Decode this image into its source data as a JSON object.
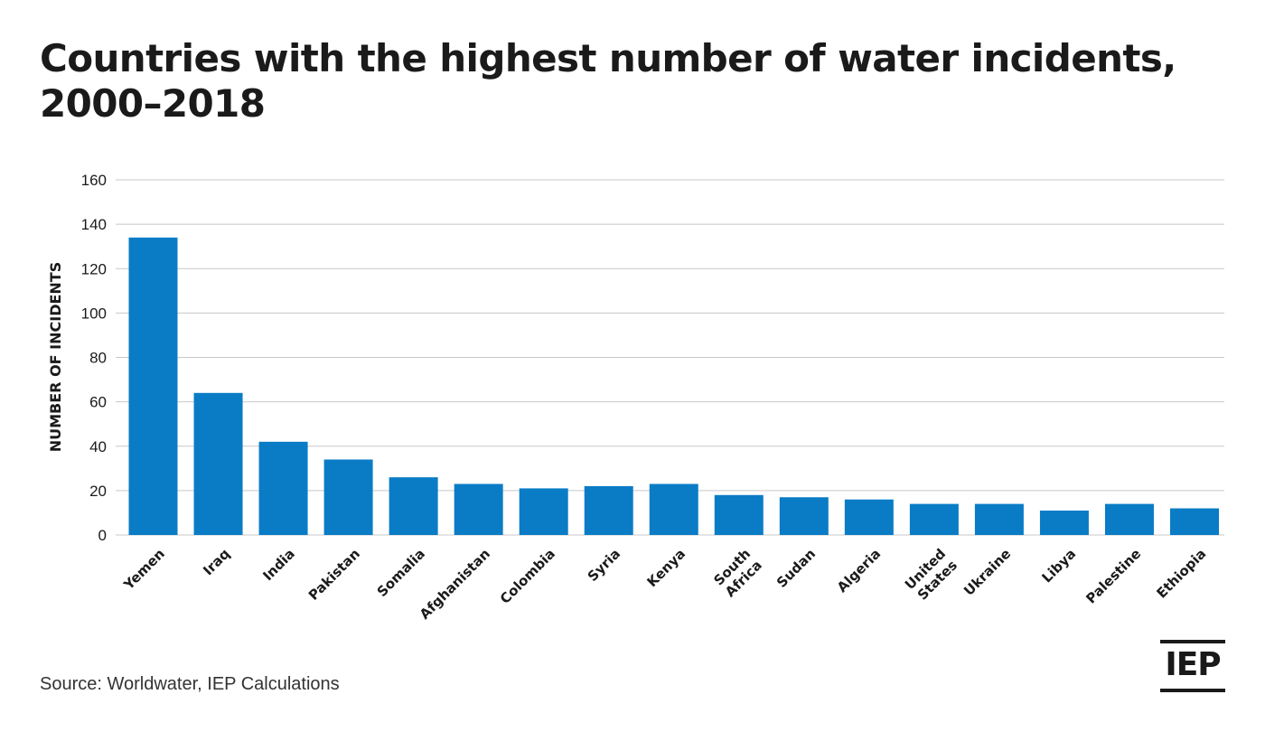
{
  "title_line1": "Countries with the highest number of water incidents,",
  "title_line2": "2000–2018",
  "source": "Source: Worldwater, IEP Calculations",
  "logo_text": "IEP",
  "colors": {
    "bar": "#0a7cc6",
    "grid": "#c8c8c8",
    "text": "#1a1a1a"
  },
  "chart_data": {
    "type": "bar",
    "title": "Countries with the highest number of water incidents, 2000–2018",
    "xlabel": "",
    "ylabel": "NUMBER OF INCIDENTS",
    "ylim": [
      0,
      160
    ],
    "yticks": [
      0,
      20,
      40,
      60,
      80,
      100,
      120,
      140,
      160
    ],
    "grid": true,
    "categories": [
      "Yemen",
      "Iraq",
      "India",
      "Pakistan",
      "Somalia",
      "Afghanistan",
      "Colombia",
      "Syria",
      "Kenya",
      "South Africa",
      "Sudan",
      "Algeria",
      "United States",
      "Ukraine",
      "Libya",
      "Palestine",
      "Ethiopia"
    ],
    "values": [
      134,
      64,
      42,
      34,
      26,
      23,
      21,
      22,
      23,
      18,
      17,
      16,
      14,
      14,
      11,
      14,
      12
    ]
  }
}
